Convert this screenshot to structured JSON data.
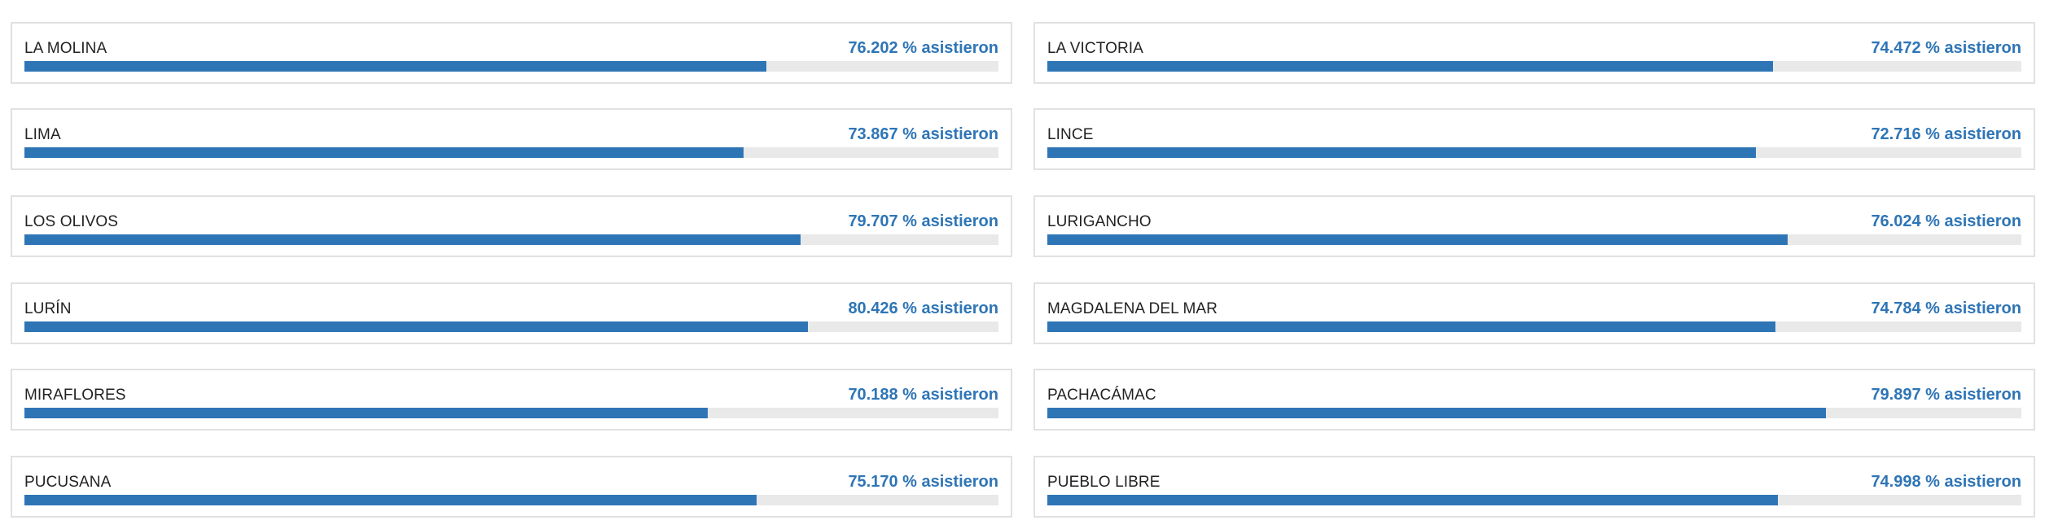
{
  "suffix": "% asistieron",
  "items": [
    {
      "name": "LA MOLINA",
      "pct_text": "76.202 % asistieron",
      "value": 76.202
    },
    {
      "name": "LA VICTORIA",
      "pct_text": "74.472 % asistieron",
      "value": 74.472
    },
    {
      "name": "LIMA",
      "pct_text": "73.867 % asistieron",
      "value": 73.867
    },
    {
      "name": "LINCE",
      "pct_text": "72.716 % asistieron",
      "value": 72.716
    },
    {
      "name": "LOS OLIVOS",
      "pct_text": "79.707 % asistieron",
      "value": 79.707
    },
    {
      "name": "LURIGANCHO",
      "pct_text": "76.024 % asistieron",
      "value": 76.024
    },
    {
      "name": "LURÍN",
      "pct_text": "80.426 % asistieron",
      "value": 80.426
    },
    {
      "name": "MAGDALENA DEL MAR",
      "pct_text": "74.784 % asistieron",
      "value": 74.784
    },
    {
      "name": "MIRAFLORES",
      "pct_text": "70.188 % asistieron",
      "value": 70.188
    },
    {
      "name": "PACHACÁMAC",
      "pct_text": "79.897 % asistieron",
      "value": 79.897
    },
    {
      "name": "PUCUSANA",
      "pct_text": "75.170 % asistieron",
      "value": 75.17
    },
    {
      "name": "PUEBLO LIBRE",
      "pct_text": "74.998 % asistieron",
      "value": 74.998
    }
  ],
  "colors": {
    "accent": "#2e75b6",
    "track": "#e9e9e9",
    "border": "#e1e1e1",
    "text": "#222222"
  }
}
